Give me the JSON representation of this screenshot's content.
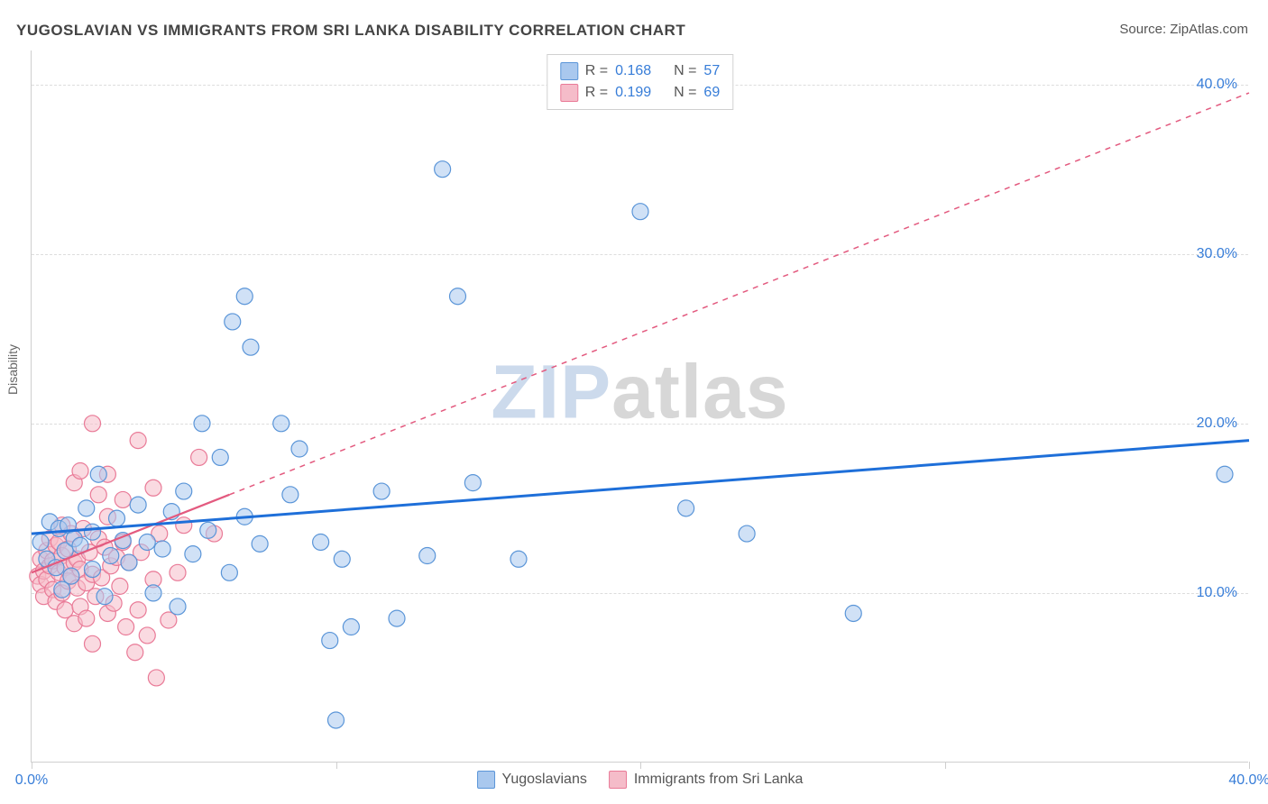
{
  "title": "YUGOSLAVIAN VS IMMIGRANTS FROM SRI LANKA DISABILITY CORRELATION CHART",
  "source_label": "Source: ",
  "source_name": "ZipAtlas.com",
  "ylabel": "Disability",
  "watermark_a": "ZIP",
  "watermark_b": "atlas",
  "chart": {
    "type": "scatter",
    "x_domain": [
      0,
      40
    ],
    "y_domain": [
      0,
      42
    ],
    "y_ticks": [
      10,
      20,
      30,
      40
    ],
    "y_tick_labels": [
      "10.0%",
      "20.0%",
      "30.0%",
      "40.0%"
    ],
    "x_ticks": [
      0,
      10,
      20,
      30,
      40
    ],
    "x_tick_labels": [
      "0.0%",
      "",
      "",
      "",
      "40.0%"
    ],
    "background_color": "#ffffff",
    "grid_color": "#dddddd",
    "axis_color": "#cfcfcf",
    "series": [
      {
        "name": "Yugoslavians",
        "r_value": "0.168",
        "n_value": "57",
        "fill": "#a9c8ee",
        "stroke": "#5a95d8",
        "fill_opacity": 0.55,
        "marker_radius": 9,
        "trend_color": "#1e6fd9",
        "trend_dash": "none",
        "trend_width": 3,
        "trend": {
          "x1": 0,
          "y1": 13.5,
          "x2": 40,
          "y2": 19.0
        },
        "points": [
          [
            0.3,
            13.0
          ],
          [
            0.5,
            12.0
          ],
          [
            0.6,
            14.2
          ],
          [
            0.8,
            11.5
          ],
          [
            0.9,
            13.8
          ],
          [
            1.0,
            10.2
          ],
          [
            1.1,
            12.5
          ],
          [
            1.2,
            14.0
          ],
          [
            1.3,
            11.0
          ],
          [
            1.4,
            13.2
          ],
          [
            1.6,
            12.8
          ],
          [
            1.8,
            15.0
          ],
          [
            2.0,
            11.4
          ],
          [
            2.0,
            13.6
          ],
          [
            2.2,
            17.0
          ],
          [
            2.4,
            9.8
          ],
          [
            2.6,
            12.2
          ],
          [
            2.8,
            14.4
          ],
          [
            3.0,
            13.1
          ],
          [
            3.2,
            11.8
          ],
          [
            3.5,
            15.2
          ],
          [
            3.8,
            13.0
          ],
          [
            4.0,
            10.0
          ],
          [
            4.3,
            12.6
          ],
          [
            4.6,
            14.8
          ],
          [
            4.8,
            9.2
          ],
          [
            5.0,
            16.0
          ],
          [
            5.3,
            12.3
          ],
          [
            5.6,
            20.0
          ],
          [
            5.8,
            13.7
          ],
          [
            6.2,
            18.0
          ],
          [
            6.5,
            11.2
          ],
          [
            6.6,
            26.0
          ],
          [
            7.0,
            27.5
          ],
          [
            7.0,
            14.5
          ],
          [
            7.2,
            24.5
          ],
          [
            7.5,
            12.9
          ],
          [
            8.2,
            20.0
          ],
          [
            8.5,
            15.8
          ],
          [
            8.8,
            18.5
          ],
          [
            9.5,
            13.0
          ],
          [
            9.8,
            7.2
          ],
          [
            10.0,
            2.5
          ],
          [
            10.2,
            12.0
          ],
          [
            10.5,
            8.0
          ],
          [
            11.5,
            16.0
          ],
          [
            12.0,
            8.5
          ],
          [
            13.0,
            12.2
          ],
          [
            13.5,
            35.0
          ],
          [
            14.0,
            27.5
          ],
          [
            14.5,
            16.5
          ],
          [
            16.0,
            12.0
          ],
          [
            20.0,
            32.5
          ],
          [
            21.5,
            15.0
          ],
          [
            23.5,
            13.5
          ],
          [
            27.0,
            8.8
          ],
          [
            39.2,
            17.0
          ]
        ]
      },
      {
        "name": "Immigrants from Sri Lanka",
        "r_value": "0.199",
        "n_value": "69",
        "fill": "#f5bcc9",
        "stroke": "#e97a97",
        "fill_opacity": 0.55,
        "marker_radius": 9,
        "trend_color": "#e35a7f",
        "trend_dash": "6 6",
        "trend_width": 1.5,
        "trend_solid_until_x": 6.5,
        "trend": {
          "x1": 0,
          "y1": 11.2,
          "x2": 40,
          "y2": 39.5
        },
        "points": [
          [
            0.2,
            11.0
          ],
          [
            0.3,
            10.5
          ],
          [
            0.3,
            12.0
          ],
          [
            0.4,
            11.3
          ],
          [
            0.4,
            9.8
          ],
          [
            0.5,
            10.8
          ],
          [
            0.5,
            12.5
          ],
          [
            0.6,
            11.6
          ],
          [
            0.6,
            13.2
          ],
          [
            0.7,
            10.2
          ],
          [
            0.7,
            11.9
          ],
          [
            0.8,
            12.8
          ],
          [
            0.8,
            9.5
          ],
          [
            0.9,
            11.2
          ],
          [
            0.9,
            13.0
          ],
          [
            1.0,
            10.0
          ],
          [
            1.0,
            12.2
          ],
          [
            1.0,
            14.0
          ],
          [
            1.1,
            11.5
          ],
          [
            1.1,
            9.0
          ],
          [
            1.2,
            10.7
          ],
          [
            1.2,
            12.6
          ],
          [
            1.3,
            11.0
          ],
          [
            1.3,
            13.5
          ],
          [
            1.4,
            8.2
          ],
          [
            1.4,
            11.8
          ],
          [
            1.5,
            10.3
          ],
          [
            1.5,
            12.0
          ],
          [
            1.6,
            9.2
          ],
          [
            1.6,
            11.4
          ],
          [
            1.7,
            13.8
          ],
          [
            1.8,
            10.6
          ],
          [
            1.8,
            8.5
          ],
          [
            1.9,
            12.4
          ],
          [
            2.0,
            11.1
          ],
          [
            2.0,
            7.0
          ],
          [
            2.1,
            9.8
          ],
          [
            2.2,
            13.2
          ],
          [
            2.3,
            10.9
          ],
          [
            2.4,
            12.7
          ],
          [
            2.5,
            8.8
          ],
          [
            2.5,
            14.5
          ],
          [
            2.6,
            11.6
          ],
          [
            2.7,
            9.4
          ],
          [
            2.8,
            12.1
          ],
          [
            2.9,
            10.4
          ],
          [
            3.0,
            13.0
          ],
          [
            3.1,
            8.0
          ],
          [
            3.2,
            11.8
          ],
          [
            3.4,
            6.5
          ],
          [
            3.5,
            9.0
          ],
          [
            3.6,
            12.4
          ],
          [
            3.8,
            7.5
          ],
          [
            4.0,
            10.8
          ],
          [
            4.1,
            5.0
          ],
          [
            4.2,
            13.5
          ],
          [
            4.5,
            8.4
          ],
          [
            4.8,
            11.2
          ],
          [
            1.4,
            16.5
          ],
          [
            1.6,
            17.2
          ],
          [
            2.0,
            20.0
          ],
          [
            2.2,
            15.8
          ],
          [
            2.5,
            17.0
          ],
          [
            3.0,
            15.5
          ],
          [
            3.5,
            19.0
          ],
          [
            4.0,
            16.2
          ],
          [
            5.0,
            14.0
          ],
          [
            5.5,
            18.0
          ],
          [
            6.0,
            13.5
          ]
        ]
      }
    ],
    "legend_top": {
      "r_label": "R =",
      "n_label": "N ="
    },
    "legend_bottom": [
      {
        "swatch": 0,
        "label": "Yugoslavians"
      },
      {
        "swatch": 1,
        "label": "Immigrants from Sri Lanka"
      }
    ]
  }
}
